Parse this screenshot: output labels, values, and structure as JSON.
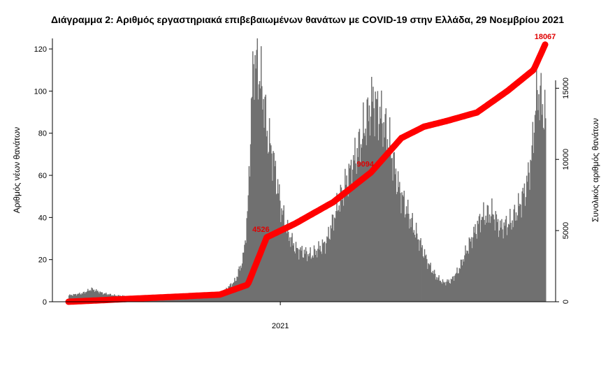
{
  "chart_data": {
    "type": "bar",
    "title": "Διάγραμμα 2: Αριθμός εργαστηριακά επιβεβαιωμένων θανάτων με COVID-19 στην Ελλάδα, 29 Νοεμβρίου 2021",
    "xlabel": "",
    "x_tick_labels": [
      "2021"
    ],
    "ylabel": "Αριθμός νέων θανάτων",
    "ylabel_right": "Συνολικός αριθμός θανάτων",
    "ylim": [
      0,
      125
    ],
    "yticks": [
      "0",
      "20",
      "40",
      "60",
      "80",
      "100",
      "120"
    ],
    "ylim_right": [
      0,
      18500
    ],
    "yticks_right": [
      "0",
      "5000",
      "10000",
      "15000"
    ],
    "series": [
      {
        "name": "",
        "kind": "bar",
        "color": "#707070",
        "day_range": [
          0,
          630
        ],
        "profile": [
          [
            0,
            3
          ],
          [
            18,
            4
          ],
          [
            30,
            6
          ],
          [
            45,
            4
          ],
          [
            60,
            3
          ],
          [
            100,
            2
          ],
          [
            150,
            2
          ],
          [
            190,
            3
          ],
          [
            205,
            5
          ],
          [
            220,
            10
          ],
          [
            230,
            20
          ],
          [
            236,
            40
          ],
          [
            240,
            80
          ],
          [
            244,
            115
          ],
          [
            250,
            110
          ],
          [
            256,
            100
          ],
          [
            262,
            80
          ],
          [
            270,
            68
          ],
          [
            280,
            45
          ],
          [
            290,
            32
          ],
          [
            300,
            25
          ],
          [
            320,
            22
          ],
          [
            340,
            28
          ],
          [
            355,
            45
          ],
          [
            370,
            60
          ],
          [
            385,
            75
          ],
          [
            395,
            88
          ],
          [
            402,
            96
          ],
          [
            412,
            88
          ],
          [
            422,
            78
          ],
          [
            435,
            55
          ],
          [
            450,
            40
          ],
          [
            465,
            27
          ],
          [
            475,
            18
          ],
          [
            485,
            12
          ],
          [
            495,
            9
          ],
          [
            505,
            10
          ],
          [
            515,
            15
          ],
          [
            530,
            28
          ],
          [
            545,
            40
          ],
          [
            560,
            42
          ],
          [
            570,
            35
          ],
          [
            585,
            38
          ],
          [
            595,
            45
          ],
          [
            605,
            55
          ],
          [
            612,
            70
          ],
          [
            617,
            95
          ],
          [
            620,
            100
          ],
          [
            624,
            95
          ],
          [
            628,
            90
          ],
          [
            630,
            85
          ]
        ]
      },
      {
        "name": "",
        "kind": "line",
        "color": "#ff0000",
        "axis": "right",
        "points": [
          [
            0,
            0
          ],
          [
            100,
            250
          ],
          [
            200,
            500
          ],
          [
            237,
            1200
          ],
          [
            262,
            4526
          ],
          [
            300,
            5500
          ],
          [
            350,
            7000
          ],
          [
            400,
            9094
          ],
          [
            440,
            11500
          ],
          [
            470,
            12300
          ],
          [
            500,
            12700
          ],
          [
            540,
            13300
          ],
          [
            580,
            14800
          ],
          [
            615,
            16300
          ],
          [
            630,
            18067
          ]
        ]
      }
    ],
    "annotations": [
      {
        "text": "4526",
        "day": 262,
        "value": 4526
      },
      {
        "text": "9094",
        "day": 400,
        "value": 9094
      },
      {
        "text": "18067",
        "day": 630,
        "value": 18067
      }
    ],
    "x_tick_day": 280,
    "grid": false,
    "legend": "none"
  },
  "colors": {
    "bars": "#707070",
    "cumulative_line": "#ff0000",
    "annotation": "#e00000"
  }
}
